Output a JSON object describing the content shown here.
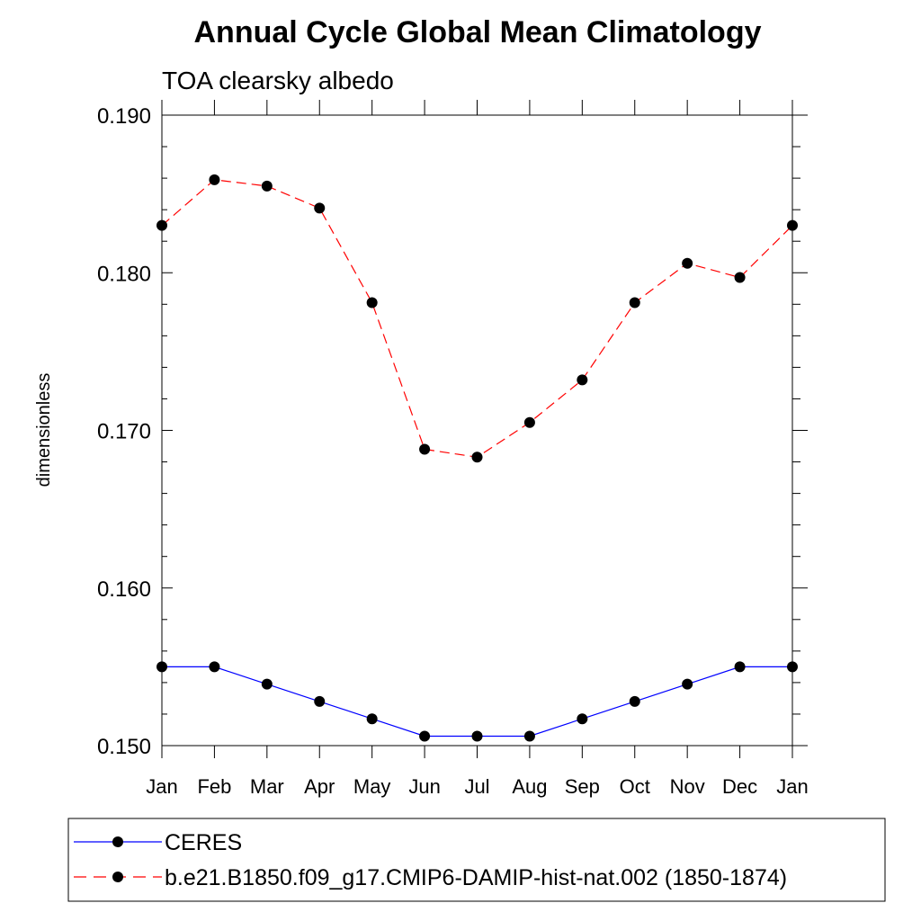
{
  "chart_data": {
    "type": "line",
    "title": "Annual Cycle Global Mean Climatology",
    "subtitle": "TOA clearsky albedo",
    "xlabel": "",
    "ylabel": "dimensionless",
    "categories": [
      "Jan",
      "Feb",
      "Mar",
      "Apr",
      "May",
      "Jun",
      "Jul",
      "Aug",
      "Sep",
      "Oct",
      "Nov",
      "Dec",
      "Jan"
    ],
    "ylim": [
      0.15,
      0.19
    ],
    "yticks": [
      0.15,
      0.16,
      0.17,
      0.18,
      0.19
    ],
    "ytick_labels": [
      "0.150",
      "0.160",
      "0.170",
      "0.180",
      "0.190"
    ],
    "grid": false,
    "legend_position": "bottom",
    "series": [
      {
        "name": "CERES",
        "color": "#0000ff",
        "line_style": "solid",
        "marker": "filled-circle",
        "values": [
          0.155,
          0.155,
          0.1539,
          0.1528,
          0.1517,
          0.1506,
          0.1506,
          0.1506,
          0.1517,
          0.1528,
          0.1539,
          0.155,
          0.155
        ]
      },
      {
        "name": "b.e21.B1850.f09_g17.CMIP6-DAMIP-hist-nat.002 (1850-1874)",
        "color": "#ff0000",
        "line_style": "dashed",
        "marker": "filled-circle",
        "values": [
          0.183,
          0.1859,
          0.1855,
          0.1841,
          0.1781,
          0.1688,
          0.1683,
          0.1705,
          0.1732,
          0.1781,
          0.1806,
          0.1797,
          0.183
        ]
      }
    ]
  }
}
